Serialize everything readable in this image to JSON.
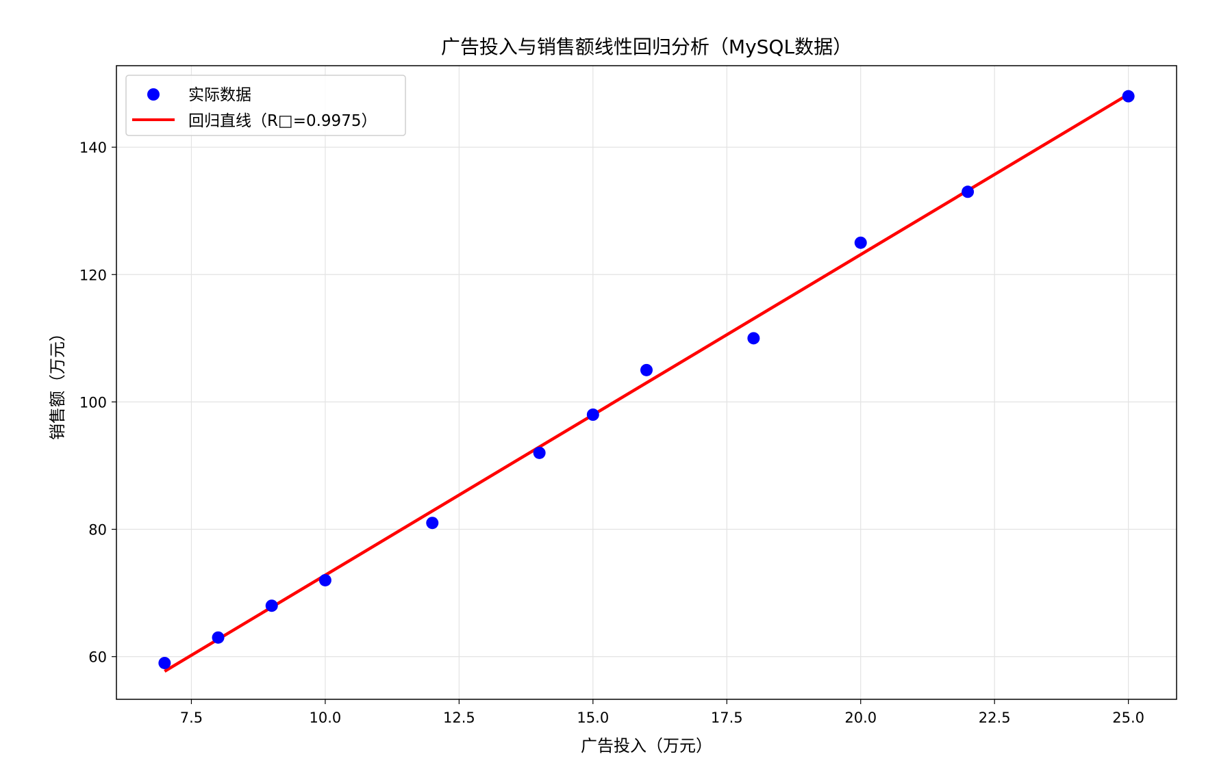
{
  "chart_data": {
    "type": "scatter",
    "title": "广告投入与销售额线性回归分析（MySQL数据）",
    "xlabel": "广告投入（万元）",
    "ylabel": "销售额（万元）",
    "xlim": [
      6.1,
      25.9
    ],
    "ylim": [
      53.3,
      152.8
    ],
    "x_ticks": [
      7.5,
      10.0,
      12.5,
      15.0,
      17.5,
      20.0,
      22.5,
      25.0
    ],
    "x_tick_labels": [
      "7.5",
      "10.0",
      "12.5",
      "15.0",
      "17.5",
      "20.0",
      "22.5",
      "25.0"
    ],
    "y_ticks": [
      60,
      80,
      100,
      120,
      140
    ],
    "y_tick_labels": [
      "60",
      "80",
      "100",
      "120",
      "140"
    ],
    "grid": true,
    "legend_position": "upper-left",
    "series": [
      {
        "name": "实际数据",
        "kind": "scatter",
        "color": "#0000ff",
        "points": [
          {
            "x": 7,
            "y": 59
          },
          {
            "x": 8,
            "y": 63
          },
          {
            "x": 9,
            "y": 68
          },
          {
            "x": 10,
            "y": 72
          },
          {
            "x": 12,
            "y": 81
          },
          {
            "x": 14,
            "y": 92
          },
          {
            "x": 15,
            "y": 98
          },
          {
            "x": 16,
            "y": 105
          },
          {
            "x": 18,
            "y": 110
          },
          {
            "x": 20,
            "y": 125
          },
          {
            "x": 22,
            "y": 133
          },
          {
            "x": 25,
            "y": 148
          }
        ]
      },
      {
        "name": "回归直线（R□=0.9975）",
        "kind": "line",
        "color": "#ff0000",
        "points": [
          {
            "x": 7,
            "y": 57.7
          },
          {
            "x": 25,
            "y": 148.3
          }
        ]
      }
    ]
  }
}
